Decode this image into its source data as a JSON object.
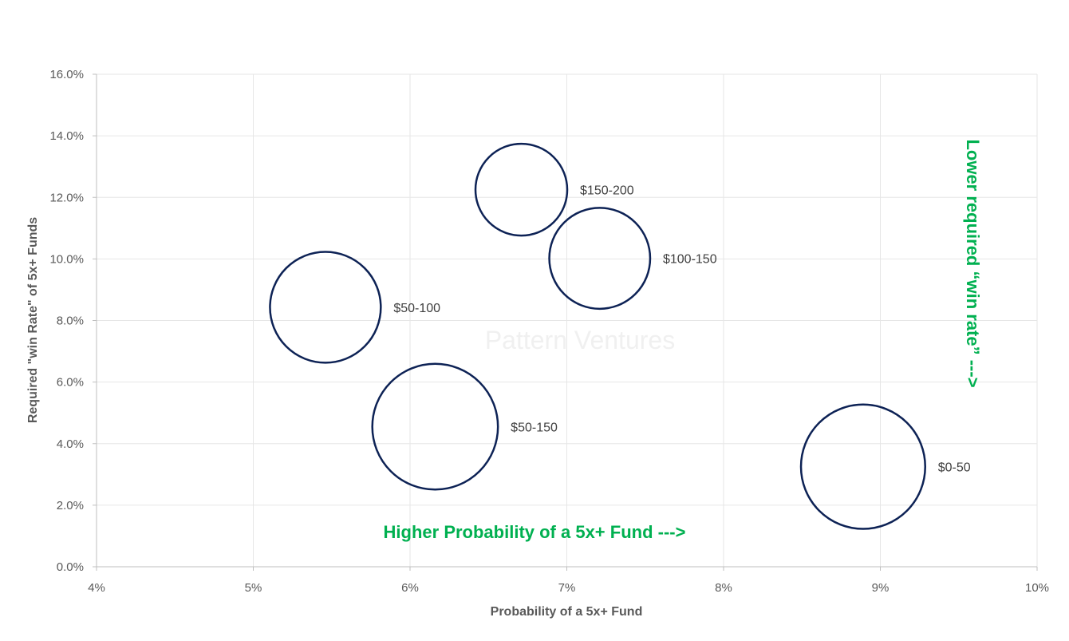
{
  "chart_data": {
    "type": "scatter",
    "subtype": "bubble",
    "xlabel": "Probability of a 5x+ Fund",
    "ylabel": "Required \"win Rate\" of 5x+ Funds",
    "xlim": [
      0.04,
      0.1
    ],
    "ylim": [
      0.0,
      0.16
    ],
    "x_ticks": [
      {
        "value": 0.04,
        "label": "4%"
      },
      {
        "value": 0.05,
        "label": "5%"
      },
      {
        "value": 0.06,
        "label": "6%"
      },
      {
        "value": 0.07,
        "label": "7%"
      },
      {
        "value": 0.08,
        "label": "8%"
      },
      {
        "value": 0.09,
        "label": "9%"
      },
      {
        "value": 0.1,
        "label": "10%"
      }
    ],
    "y_ticks": [
      {
        "value": 0.0,
        "label": "0.0%"
      },
      {
        "value": 0.02,
        "label": "2.0%"
      },
      {
        "value": 0.04,
        "label": "4.0%"
      },
      {
        "value": 0.06,
        "label": "6.0%"
      },
      {
        "value": 0.08,
        "label": "8.0%"
      },
      {
        "value": 0.1,
        "label": "10.0%"
      },
      {
        "value": 0.12,
        "label": "12.0%"
      },
      {
        "value": 0.14,
        "label": "14.0%"
      },
      {
        "value": 0.16,
        "label": "16.0%"
      }
    ],
    "grid": true,
    "bubble_color": "#0d2255",
    "points": [
      {
        "label": "$150-200",
        "x": 0.0671,
        "y": 0.1225,
        "size": 0.48
      },
      {
        "label": "$100-150",
        "x": 0.0721,
        "y": 0.1002,
        "size": 0.58
      },
      {
        "label": "$50-100",
        "x": 0.0546,
        "y": 0.0843,
        "size": 0.7
      },
      {
        "label": "$50-150",
        "x": 0.0616,
        "y": 0.0455,
        "size": 0.9
      },
      {
        "label": "$0-50",
        "x": 0.0889,
        "y": 0.0325,
        "size": 0.88
      }
    ],
    "annotations": [
      {
        "text": "Higher Probability of a 5x+ Fund --->",
        "color": "#00b050",
        "orientation": "horizontal"
      },
      {
        "text": "Lower required “win rate” --->",
        "color": "#00b050",
        "orientation": "vertical"
      }
    ],
    "watermark": "Pattern Ventures"
  }
}
